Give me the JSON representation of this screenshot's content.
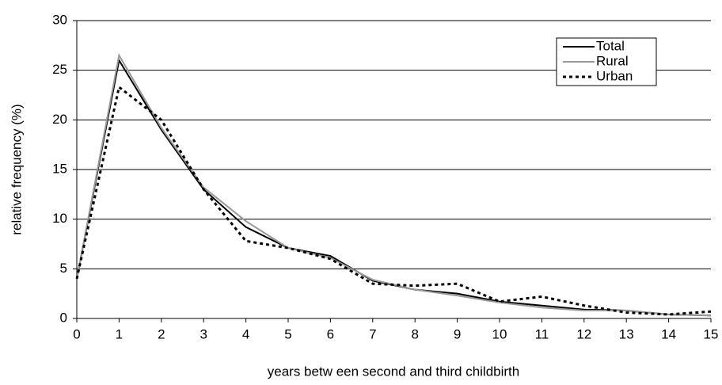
{
  "chart_data": {
    "type": "line",
    "x_label": "years betw een second and third childbirth",
    "y_label": "relative frequency (%)",
    "x": [
      0,
      1,
      2,
      3,
      4,
      5,
      6,
      7,
      8,
      9,
      10,
      11,
      12,
      13,
      14,
      15
    ],
    "series": [
      {
        "name": "Total",
        "color": "#000000",
        "style": "solid",
        "values": [
          4,
          26,
          19,
          13,
          9.2,
          7.1,
          6.3,
          3.8,
          2.9,
          2.5,
          1.7,
          1.3,
          0.9,
          0.8,
          0.4,
          0.3
        ]
      },
      {
        "name": "Rural",
        "color": "#999999",
        "style": "solid",
        "values": [
          4,
          26.5,
          19.2,
          13.2,
          9.8,
          7.1,
          6.1,
          3.9,
          2.9,
          2.3,
          1.6,
          1.1,
          0.8,
          0.8,
          0.4,
          0.3
        ]
      },
      {
        "name": "Urban",
        "color": "#000000",
        "style": "dotted",
        "values": [
          4,
          23.3,
          20,
          13,
          7.8,
          7.1,
          6,
          3.5,
          3.3,
          3.5,
          1.7,
          2.2,
          1.3,
          0.6,
          0.4,
          0.7
        ]
      }
    ],
    "xlim": [
      0,
      15
    ],
    "xticks": [
      0,
      1,
      2,
      3,
      4,
      5,
      6,
      7,
      8,
      9,
      10,
      11,
      12,
      13,
      14,
      15
    ],
    "ylim": [
      0,
      30
    ],
    "yticks": [
      0,
      5,
      10,
      15,
      20,
      25,
      30
    ],
    "grid": true,
    "legend": "top-right"
  }
}
